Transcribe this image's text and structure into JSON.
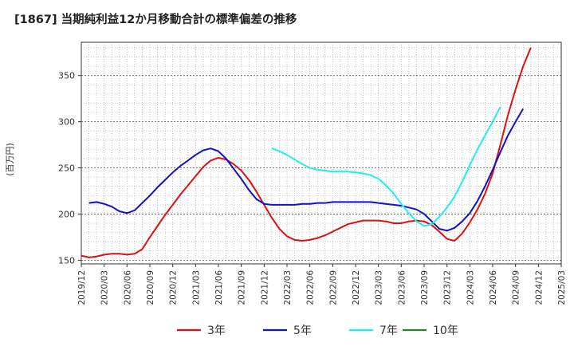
{
  "chart_data": {
    "type": "line",
    "title": "[1867]  当期純利益12か月移動合計の標準偏差の推移",
    "ylabel": "(百万円)",
    "xlabel": "",
    "ylim": [
      146,
      386
    ],
    "yticks": [
      150,
      200,
      250,
      300,
      350
    ],
    "xlim": [
      "2019-12",
      "2025-03"
    ],
    "xticks": [
      "2019/12",
      "2020/03",
      "2020/06",
      "2020/09",
      "2020/12",
      "2021/03",
      "2021/06",
      "2021/09",
      "2021/12",
      "2022/03",
      "2022/06",
      "2022/09",
      "2022/12",
      "2023/03",
      "2023/06",
      "2023/09",
      "2023/12",
      "2024/03",
      "2024/06",
      "2024/09",
      "2024/12",
      "2025/03"
    ],
    "grid": true,
    "legend_position": "bottom",
    "series": [
      {
        "name": "3年",
        "color": "#dd1111",
        "points": [
          [
            "2019-12",
            155
          ],
          [
            "2020-01",
            153
          ],
          [
            "2020-02",
            154
          ],
          [
            "2020-03",
            156
          ],
          [
            "2020-04",
            157
          ],
          [
            "2020-05",
            157
          ],
          [
            "2020-06",
            156
          ],
          [
            "2020-07",
            157
          ],
          [
            "2020-08",
            162
          ],
          [
            "2020-09",
            175
          ],
          [
            "2020-10",
            187
          ],
          [
            "2020-11",
            199
          ],
          [
            "2020-12",
            210
          ],
          [
            "2021-01",
            221
          ],
          [
            "2021-02",
            231
          ],
          [
            "2021-03",
            241
          ],
          [
            "2021-04",
            251
          ],
          [
            "2021-05",
            258
          ],
          [
            "2021-06",
            261
          ],
          [
            "2021-07",
            259
          ],
          [
            "2021-08",
            254
          ],
          [
            "2021-09",
            247
          ],
          [
            "2021-10",
            237
          ],
          [
            "2021-11",
            224
          ],
          [
            "2021-12",
            210
          ],
          [
            "2022-01",
            196
          ],
          [
            "2022-02",
            184
          ],
          [
            "2022-03",
            176
          ],
          [
            "2022-04",
            172
          ],
          [
            "2022-05",
            171
          ],
          [
            "2022-06",
            172
          ],
          [
            "2022-07",
            174
          ],
          [
            "2022-08",
            177
          ],
          [
            "2022-09",
            181
          ],
          [
            "2022-10",
            185
          ],
          [
            "2022-11",
            189
          ],
          [
            "2022-12",
            191
          ],
          [
            "2023-01",
            193
          ],
          [
            "2023-02",
            193
          ],
          [
            "2023-03",
            193
          ],
          [
            "2023-04",
            192
          ],
          [
            "2023-05",
            190
          ],
          [
            "2023-06",
            190
          ],
          [
            "2023-07",
            192
          ],
          [
            "2023-08",
            193
          ],
          [
            "2023-09",
            192
          ],
          [
            "2023-10",
            188
          ],
          [
            "2023-11",
            181
          ],
          [
            "2023-12",
            173
          ],
          [
            "2024-01",
            171
          ],
          [
            "2024-02",
            179
          ],
          [
            "2024-03",
            191
          ],
          [
            "2024-04",
            205
          ],
          [
            "2024-05",
            222
          ],
          [
            "2024-06",
            244
          ],
          [
            "2024-07",
            275
          ],
          [
            "2024-08",
            307
          ],
          [
            "2024-09",
            335
          ],
          [
            "2024-10",
            360
          ],
          [
            "2024-11",
            380
          ]
        ]
      },
      {
        "name": "5年",
        "color": "#1111cc",
        "points": [
          [
            "2020-01",
            212
          ],
          [
            "2020-02",
            213
          ],
          [
            "2020-03",
            211
          ],
          [
            "2020-04",
            208
          ],
          [
            "2020-05",
            203
          ],
          [
            "2020-06",
            201
          ],
          [
            "2020-07",
            204
          ],
          [
            "2020-08",
            212
          ],
          [
            "2020-09",
            220
          ],
          [
            "2020-10",
            229
          ],
          [
            "2020-11",
            237
          ],
          [
            "2020-12",
            245
          ],
          [
            "2021-01",
            252
          ],
          [
            "2021-02",
            258
          ],
          [
            "2021-03",
            264
          ],
          [
            "2021-04",
            269
          ],
          [
            "2021-05",
            271
          ],
          [
            "2021-06",
            268
          ],
          [
            "2021-07",
            260
          ],
          [
            "2021-08",
            249
          ],
          [
            "2021-09",
            238
          ],
          [
            "2021-10",
            226
          ],
          [
            "2021-11",
            216
          ],
          [
            "2021-12",
            211
          ],
          [
            "2022-01",
            210
          ],
          [
            "2022-02",
            210
          ],
          [
            "2022-03",
            210
          ],
          [
            "2022-04",
            210
          ],
          [
            "2022-05",
            211
          ],
          [
            "2022-06",
            211
          ],
          [
            "2022-07",
            212
          ],
          [
            "2022-08",
            212
          ],
          [
            "2022-09",
            213
          ],
          [
            "2022-10",
            213
          ],
          [
            "2022-11",
            213
          ],
          [
            "2022-12",
            213
          ],
          [
            "2023-01",
            213
          ],
          [
            "2023-02",
            213
          ],
          [
            "2023-03",
            212
          ],
          [
            "2023-04",
            211
          ],
          [
            "2023-05",
            210
          ],
          [
            "2023-06",
            209
          ],
          [
            "2023-07",
            207
          ],
          [
            "2023-08",
            205
          ],
          [
            "2023-09",
            200
          ],
          [
            "2023-10",
            192
          ],
          [
            "2023-11",
            184
          ],
          [
            "2023-12",
            182
          ],
          [
            "2024-01",
            185
          ],
          [
            "2024-02",
            192
          ],
          [
            "2024-03",
            201
          ],
          [
            "2024-04",
            214
          ],
          [
            "2024-05",
            230
          ],
          [
            "2024-06",
            248
          ],
          [
            "2024-07",
            267
          ],
          [
            "2024-08",
            285
          ],
          [
            "2024-09",
            300
          ],
          [
            "2024-10",
            314
          ]
        ]
      },
      {
        "name": "7年",
        "color": "#22eeee",
        "points": [
          [
            "2022-01",
            271
          ],
          [
            "2022-02",
            268
          ],
          [
            "2022-03",
            264
          ],
          [
            "2022-04",
            259
          ],
          [
            "2022-05",
            254
          ],
          [
            "2022-06",
            250
          ],
          [
            "2022-07",
            248
          ],
          [
            "2022-08",
            247
          ],
          [
            "2022-09",
            246
          ],
          [
            "2022-10",
            246
          ],
          [
            "2022-11",
            246
          ],
          [
            "2022-12",
            245
          ],
          [
            "2023-01",
            244
          ],
          [
            "2023-02",
            242
          ],
          [
            "2023-03",
            238
          ],
          [
            "2023-04",
            231
          ],
          [
            "2023-05",
            222
          ],
          [
            "2023-06",
            211
          ],
          [
            "2023-07",
            201
          ],
          [
            "2023-08",
            192
          ],
          [
            "2023-09",
            187
          ],
          [
            "2023-10",
            189
          ],
          [
            "2023-11",
            197
          ],
          [
            "2023-12",
            207
          ],
          [
            "2024-01",
            219
          ],
          [
            "2024-02",
            235
          ],
          [
            "2024-03",
            253
          ],
          [
            "2024-04",
            270
          ],
          [
            "2024-05",
            285
          ],
          [
            "2024-06",
            300
          ],
          [
            "2024-07",
            316
          ]
        ]
      },
      {
        "name": "10年",
        "color": "#228822",
        "points": []
      }
    ]
  }
}
